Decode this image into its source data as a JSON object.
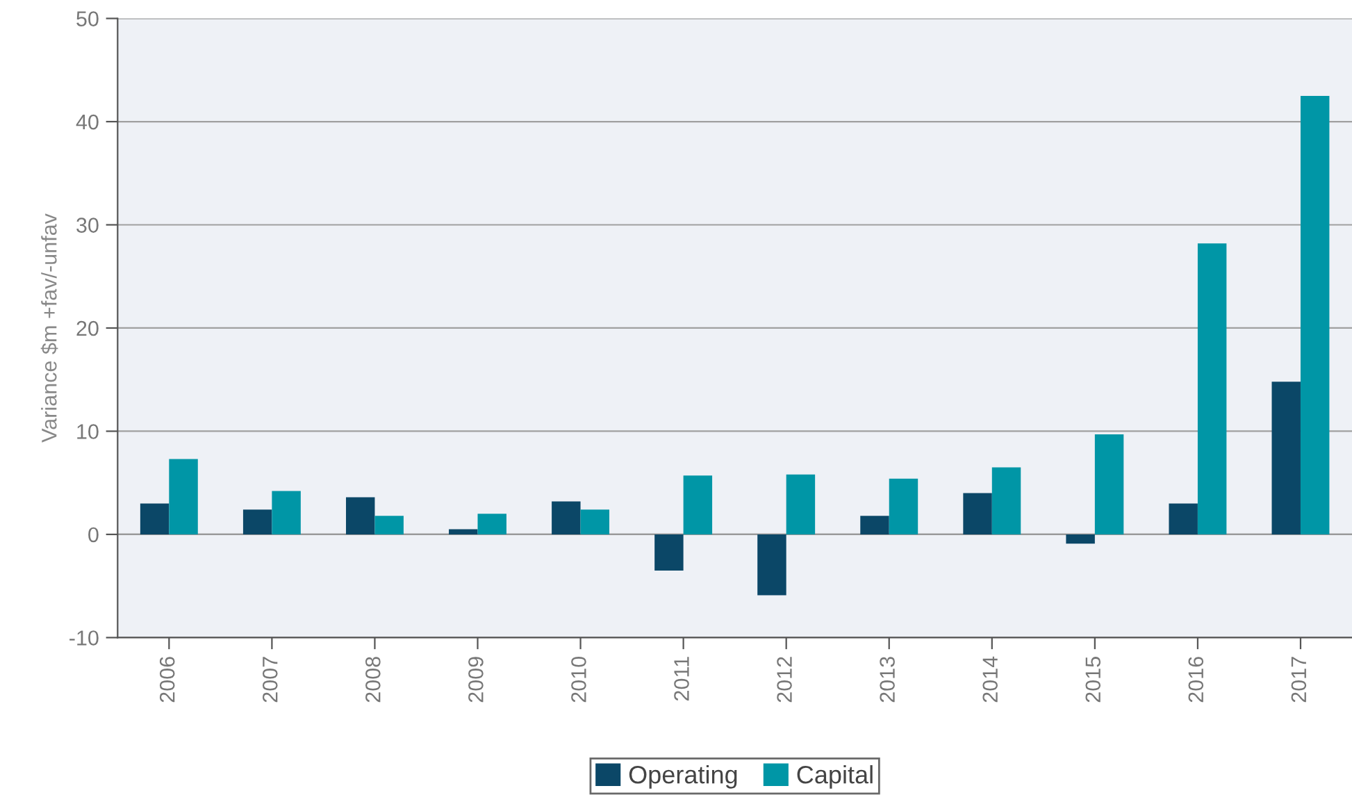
{
  "chart_data": {
    "type": "bar",
    "ylabel": "Variance $m +fav/-unfav",
    "categories": [
      "2006",
      "2007",
      "2008",
      "2009",
      "2010",
      "2011",
      "2012",
      "2013",
      "2014",
      "2015",
      "2016",
      "2017"
    ],
    "series": [
      {
        "name": "Operating",
        "color": "#0b4767",
        "values": [
          3.0,
          2.4,
          3.6,
          0.5,
          3.2,
          -3.5,
          -5.9,
          1.8,
          4.0,
          -0.9,
          3.0,
          14.8
        ]
      },
      {
        "name": "Capital",
        "color": "#0096a6",
        "values": [
          7.3,
          4.2,
          1.8,
          2.0,
          2.4,
          5.7,
          5.8,
          5.4,
          6.5,
          9.7,
          28.2,
          42.5
        ]
      }
    ],
    "ylim": [
      -10,
      50
    ],
    "yticks": [
      -10,
      0,
      10,
      20,
      30,
      40,
      50
    ],
    "grid": "y",
    "legend": "bottom"
  }
}
